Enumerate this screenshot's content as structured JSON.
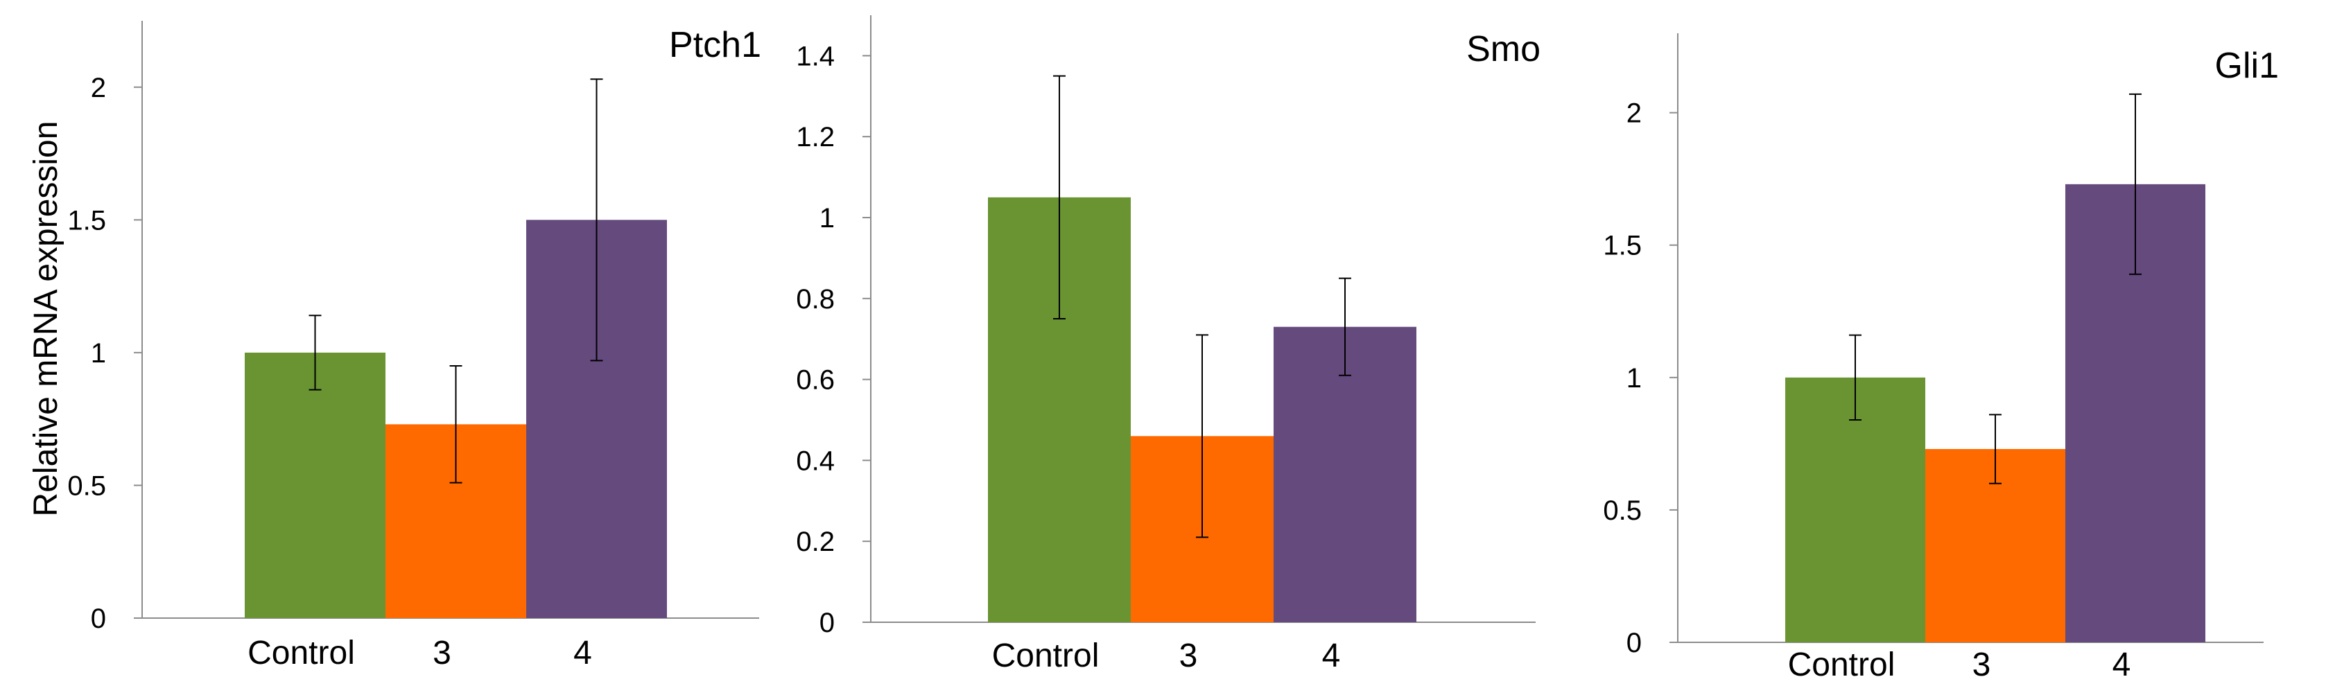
{
  "chart_data": [
    {
      "type": "bar",
      "title": "Ptch1",
      "ylabel": "Relative mRNA expression",
      "xlabel": "",
      "categories": [
        "Control",
        "3",
        "4"
      ],
      "values": [
        1.0,
        0.73,
        1.5
      ],
      "errors": [
        0.14,
        0.22,
        0.53
      ],
      "colors": [
        "#6a9432",
        "#ff6a00",
        "#654a7e"
      ],
      "ylim": [
        0,
        2.25
      ],
      "yticks": [
        0,
        0.5,
        1,
        1.5,
        2
      ],
      "ytick_labels": [
        "0",
        "0.5",
        "1",
        "1.5",
        "2"
      ]
    },
    {
      "type": "bar",
      "title": "Smo",
      "ylabel": "",
      "xlabel": "",
      "categories": [
        "Control",
        "3",
        "4"
      ],
      "values": [
        1.05,
        0.46,
        0.73
      ],
      "errors": [
        0.3,
        0.25,
        0.12
      ],
      "colors": [
        "#6a9432",
        "#ff6a00",
        "#654a7e"
      ],
      "ylim": [
        0,
        1.5
      ],
      "yticks": [
        0,
        0.2,
        0.4,
        0.6,
        0.8,
        1,
        1.2,
        1.4
      ],
      "ytick_labels": [
        "0",
        "0.2",
        "0.4",
        "0.6",
        "0.8",
        "1",
        "1.2",
        "1.4"
      ]
    },
    {
      "type": "bar",
      "title": "Gli1",
      "ylabel": "",
      "xlabel": "",
      "categories": [
        "Control",
        "3",
        "4"
      ],
      "values": [
        1.0,
        0.73,
        1.73
      ],
      "errors": [
        0.16,
        0.13,
        0.34
      ],
      "colors": [
        "#6a9432",
        "#ff6a00",
        "#654a7e"
      ],
      "ylim": [
        0,
        2.3
      ],
      "yticks": [
        0,
        0.5,
        1,
        1.5,
        2
      ],
      "ytick_labels": [
        "0",
        "0.5",
        "1",
        "1.5",
        "2"
      ]
    }
  ]
}
